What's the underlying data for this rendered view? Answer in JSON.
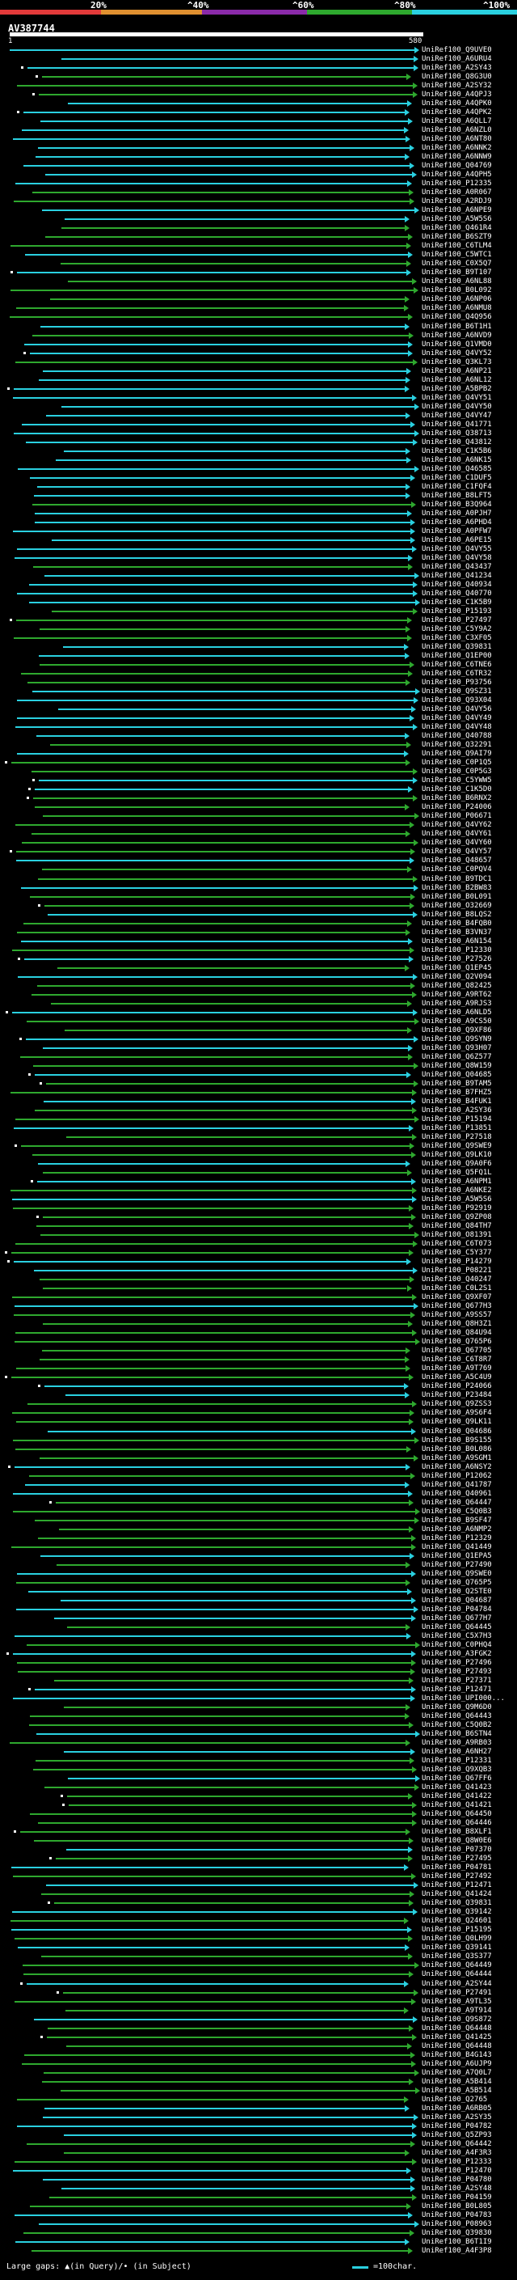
{
  "header": {
    "ticks": [
      "20%",
      "^40%",
      "^60%",
      "^80%",
      "^100%"
    ],
    "colors": {
      "red": "#e23a3a",
      "orange": "#e09030",
      "purple": "#8a2aa8",
      "green": "#2ea82e",
      "cyan": "#2ad0e0"
    }
  },
  "query": {
    "title": "AV387744",
    "start_label": "1",
    "end_label": "580"
  },
  "hits": [
    {
      "label": "UniRef100_Q9UVE0",
      "color": "cyan"
    },
    {
      "label": "UniRef100_A6URU4",
      "color": "cyan"
    },
    {
      "label": "UniRef100_A2SY43",
      "color": "cyan"
    },
    {
      "label": "UniRef100_Q8G3U0",
      "color": "green"
    },
    {
      "label": "UniRef100_A2SY32",
      "color": "green"
    },
    {
      "label": "UniRef100_A4QPJ3",
      "color": "green"
    },
    {
      "label": "UniRef100_A4QPK0",
      "color": "cyan"
    },
    {
      "label": "UniRef100_A4QPK2",
      "color": "cyan"
    },
    {
      "label": "UniRef100_A6QLL7",
      "color": "cyan"
    },
    {
      "label": "UniRef100_A6NZL0",
      "color": "cyan"
    },
    {
      "label": "UniRef100_A6NT80",
      "color": "cyan"
    },
    {
      "label": "UniRef100_A6NNK2",
      "color": "cyan"
    },
    {
      "label": "UniRef100_A6NNW9",
      "color": "cyan"
    },
    {
      "label": "UniRef100_Q04769",
      "color": "cyan"
    },
    {
      "label": "UniRef100_A4QPH5",
      "color": "cyan"
    },
    {
      "label": "UniRef100_P12335",
      "color": "cyan"
    },
    {
      "label": "UniRef100_A0R067",
      "color": "green"
    },
    {
      "label": "UniRef100_A2RDJ9",
      "color": "green"
    },
    {
      "label": "UniRef100_A6NPE9",
      "color": "cyan"
    },
    {
      "label": "UniRef100_A5W5S6",
      "color": "cyan"
    },
    {
      "label": "UniRef100_Q461R4",
      "color": "green"
    },
    {
      "label": "UniRef100_B6SZT9",
      "color": "green"
    },
    {
      "label": "UniRef100_C6TLM4",
      "color": "green"
    },
    {
      "label": "UniRef100_C5WTC1",
      "color": "cyan"
    },
    {
      "label": "UniRef100_C0X5Q7",
      "color": "green"
    },
    {
      "label": "UniRef100_B9T107",
      "color": "cyan"
    },
    {
      "label": "UniRef100_A6NL88",
      "color": "green"
    },
    {
      "label": "UniRef100_B0L092",
      "color": "green"
    },
    {
      "label": "UniRef100_A6NP06",
      "color": "green"
    },
    {
      "label": "UniRef100_A6NMU8",
      "color": "green"
    },
    {
      "label": "UniRef100_Q4Q956",
      "color": "green"
    },
    {
      "label": "UniRef100_B6T1H1",
      "color": "cyan"
    },
    {
      "label": "UniRef100_A6NVD9",
      "color": "green"
    },
    {
      "label": "UniRef100_Q1VMD0",
      "color": "cyan"
    },
    {
      "label": "UniRef100_Q4VY52",
      "color": "cyan"
    },
    {
      "label": "UniRef100_Q3KL73",
      "color": "green"
    },
    {
      "label": "UniRef100_A6NP21",
      "color": "cyan"
    },
    {
      "label": "UniRef100_A6NL12",
      "color": "cyan"
    },
    {
      "label": "UniRef100_A5BPB2",
      "color": "cyan"
    },
    {
      "label": "UniRef100_Q4VY51",
      "color": "cyan"
    },
    {
      "label": "UniRef100_Q4VY50",
      "color": "cyan"
    },
    {
      "label": "UniRef100_Q4VY47",
      "color": "cyan"
    },
    {
      "label": "UniRef100_Q41771",
      "color": "cyan"
    },
    {
      "label": "UniRef100_Q38713",
      "color": "cyan"
    },
    {
      "label": "UniRef100_Q43812",
      "color": "cyan"
    },
    {
      "label": "UniRef100_C1K5B6",
      "color": "cyan"
    },
    {
      "label": "UniRef100_A6NK15",
      "color": "cyan"
    },
    {
      "label": "UniRef100_Q46585",
      "color": "cyan"
    },
    {
      "label": "UniRef100_C1DUF5",
      "color": "cyan"
    },
    {
      "label": "UniRef100_C1FQF4",
      "color": "cyan"
    },
    {
      "label": "UniRef100_B8LFT5",
      "color": "cyan"
    },
    {
      "label": "UniRef100_B3Q964",
      "color": "green"
    },
    {
      "label": "UniRef100_A0PJH7",
      "color": "cyan"
    },
    {
      "label": "UniRef100_A6PHD4",
      "color": "cyan"
    },
    {
      "label": "UniRef100_A0PFW7",
      "color": "cyan"
    },
    {
      "label": "UniRef100_A6PE15",
      "color": "cyan"
    },
    {
      "label": "UniRef100_Q4VY55",
      "color": "cyan"
    },
    {
      "label": "UniRef100_Q4VY58",
      "color": "cyan"
    },
    {
      "label": "UniRef100_Q43437",
      "color": "green"
    },
    {
      "label": "UniRef100_Q41234",
      "color": "cyan"
    },
    {
      "label": "UniRef100_Q40934",
      "color": "cyan"
    },
    {
      "label": "UniRef100_Q40770",
      "color": "cyan"
    },
    {
      "label": "UniRef100_C1K5B9",
      "color": "cyan"
    },
    {
      "label": "UniRef100_P15193",
      "color": "green"
    },
    {
      "label": "UniRef100_P27497",
      "color": "green"
    },
    {
      "label": "UniRef100_C5Y9A2",
      "color": "green"
    },
    {
      "label": "UniRef100_C3XF05",
      "color": "green"
    },
    {
      "label": "UniRef100_Q39831",
      "color": "cyan"
    },
    {
      "label": "UniRef100_Q1EP00",
      "color": "cyan"
    },
    {
      "label": "UniRef100_C6TNE6",
      "color": "green"
    },
    {
      "label": "UniRef100_C6TR32",
      "color": "green"
    },
    {
      "label": "UniRef100_P93756",
      "color": "green"
    },
    {
      "label": "UniRef100_Q9SZ31",
      "color": "cyan"
    },
    {
      "label": "UniRef100_Q93X04",
      "color": "cyan"
    },
    {
      "label": "UniRef100_Q4VY56",
      "color": "cyan"
    },
    {
      "label": "UniRef100_Q4VY49",
      "color": "cyan"
    },
    {
      "label": "UniRef100_Q4VY48",
      "color": "cyan"
    },
    {
      "label": "UniRef100_Q40788",
      "color": "cyan"
    },
    {
      "label": "UniRef100_Q32291",
      "color": "green"
    },
    {
      "label": "UniRef100_Q9AI79",
      "color": "cyan"
    },
    {
      "label": "UniRef100_C0P1Q5",
      "color": "green"
    },
    {
      "label": "UniRef100_C0P5G3",
      "color": "green"
    },
    {
      "label": "UniRef100_C5YWW5",
      "color": "cyan"
    },
    {
      "label": "UniRef100_C1K5D0",
      "color": "cyan"
    },
    {
      "label": "UniRef100_B6RNX2",
      "color": "green"
    },
    {
      "label": "UniRef100_P24006",
      "color": "green"
    },
    {
      "label": "UniRef100_P06671",
      "color": "green"
    },
    {
      "label": "UniRef100_Q4VY62",
      "color": "green"
    },
    {
      "label": "UniRef100_Q4VY61",
      "color": "green"
    },
    {
      "label": "UniRef100_Q4VY60",
      "color": "green"
    },
    {
      "label": "UniRef100_Q4VY57",
      "color": "green"
    },
    {
      "label": "UniRef100_Q48657",
      "color": "cyan"
    },
    {
      "label": "UniRef100_C0PQV4",
      "color": "green"
    },
    {
      "label": "UniRef100_B9TDC1",
      "color": "green"
    },
    {
      "label": "UniRef100_B2BW83",
      "color": "cyan"
    },
    {
      "label": "UniRef100_B0L091",
      "color": "green"
    },
    {
      "label": "UniRef100_O32669",
      "color": "green"
    },
    {
      "label": "UniRef100_B8LQS2",
      "color": "cyan"
    },
    {
      "label": "UniRef100_B4FQB0",
      "color": "green"
    },
    {
      "label": "UniRef100_B3VN37",
      "color": "green"
    },
    {
      "label": "UniRef100_A6N154",
      "color": "cyan"
    },
    {
      "label": "UniRef100_P12330",
      "color": "green"
    },
    {
      "label": "UniRef100_P27526",
      "color": "cyan"
    },
    {
      "label": "UniRef100_Q1EP45",
      "color": "green"
    },
    {
      "label": "UniRef100_Q2V094",
      "color": "cyan"
    },
    {
      "label": "UniRef100_Q82425",
      "color": "green"
    },
    {
      "label": "UniRef100_A9RT62",
      "color": "green"
    },
    {
      "label": "UniRef100_A9RJS3",
      "color": "green"
    },
    {
      "label": "UniRef100_A6NLD5",
      "color": "cyan"
    },
    {
      "label": "UniRef100_A9CS50",
      "color": "green"
    },
    {
      "label": "UniRef100_Q9XF86",
      "color": "green"
    },
    {
      "label": "UniRef100_Q9SYN9",
      "color": "cyan"
    },
    {
      "label": "UniRef100_Q93H07",
      "color": "cyan"
    },
    {
      "label": "UniRef100_Q6Z577",
      "color": "green"
    },
    {
      "label": "UniRef100_Q8W159",
      "color": "green"
    },
    {
      "label": "UniRef100_Q04685",
      "color": "cyan"
    },
    {
      "label": "UniRef100_B9TAM5",
      "color": "green"
    },
    {
      "label": "UniRef100_B7FHZ5",
      "color": "green"
    },
    {
      "label": "UniRef100_B4FUK1",
      "color": "cyan"
    },
    {
      "label": "UniRef100_A2SY36",
      "color": "green"
    },
    {
      "label": "UniRef100_P15194",
      "color": "green"
    },
    {
      "label": "UniRef100_P13851",
      "color": "cyan"
    },
    {
      "label": "UniRef100_P27518",
      "color": "green"
    },
    {
      "label": "UniRef100_Q9SWE9",
      "color": "green"
    },
    {
      "label": "UniRef100_Q9LK10",
      "color": "green"
    },
    {
      "label": "UniRef100_Q9A0F6",
      "color": "cyan"
    },
    {
      "label": "UniRef100_Q5FQ1L",
      "color": "green"
    },
    {
      "label": "UniRef100_A6NPM1",
      "color": "cyan"
    },
    {
      "label": "UniRef100_A6NKE2",
      "color": "green"
    },
    {
      "label": "UniRef100_A5W5S6",
      "color": "cyan"
    },
    {
      "label": "UniRef100_P92919",
      "color": "green"
    },
    {
      "label": "UniRef100_Q9ZP08",
      "color": "green"
    },
    {
      "label": "UniRef100_Q84TH7",
      "color": "green"
    },
    {
      "label": "UniRef100_O81391",
      "color": "green"
    },
    {
      "label": "UniRef100_C6T073",
      "color": "green"
    },
    {
      "label": "UniRef100_C5Y377",
      "color": "green"
    },
    {
      "label": "UniRef100_P14279",
      "color": "cyan"
    },
    {
      "label": "UniRef100_P08221",
      "color": "cyan"
    },
    {
      "label": "UniRef100_Q40247",
      "color": "green"
    },
    {
      "label": "UniRef100_C0L2S1",
      "color": "green"
    },
    {
      "label": "UniRef100_Q9XF07",
      "color": "green"
    },
    {
      "label": "UniRef100_Q677H3",
      "color": "cyan"
    },
    {
      "label": "UniRef100_A9SS57",
      "color": "green"
    },
    {
      "label": "UniRef100_Q8H3Z1",
      "color": "green"
    },
    {
      "label": "UniRef100_Q84U94",
      "color": "green"
    },
    {
      "label": "UniRef100_Q765P6",
      "color": "green"
    },
    {
      "label": "UniRef100_Q67705",
      "color": "green"
    },
    {
      "label": "UniRef100_C6T8R7",
      "color": "green"
    },
    {
      "label": "UniRef100_A9T769",
      "color": "green"
    },
    {
      "label": "UniRef100_A5C4U9",
      "color": "green"
    },
    {
      "label": "UniRef100_P24066",
      "color": "cyan"
    },
    {
      "label": "UniRef100_P23484",
      "color": "cyan"
    },
    {
      "label": "UniRef100_Q9ZSS3",
      "color": "green"
    },
    {
      "label": "UniRef100_A9S6F4",
      "color": "green"
    },
    {
      "label": "UniRef100_Q9LK11",
      "color": "green"
    },
    {
      "label": "UniRef100_Q04686",
      "color": "cyan"
    },
    {
      "label": "UniRef100_B9S155",
      "color": "green"
    },
    {
      "label": "UniRef100_B0L086",
      "color": "green"
    },
    {
      "label": "UniRef100_A9SGM1",
      "color": "green"
    },
    {
      "label": "UniRef100_A6NSY2",
      "color": "cyan"
    },
    {
      "label": "UniRef100_P12062",
      "color": "green"
    },
    {
      "label": "UniRef100_Q41787",
      "color": "cyan"
    },
    {
      "label": "UniRef100_Q40961",
      "color": "cyan"
    },
    {
      "label": "UniRef100_Q64447",
      "color": "green"
    },
    {
      "label": "UniRef100_C5Q0B3",
      "color": "green"
    },
    {
      "label": "UniRef100_B9SF47",
      "color": "green"
    },
    {
      "label": "UniRef100_A6NMP2",
      "color": "green"
    },
    {
      "label": "UniRef100_P12329",
      "color": "green"
    },
    {
      "label": "UniRef100_Q41449",
      "color": "green"
    },
    {
      "label": "UniRef100_Q1EPA5",
      "color": "cyan"
    },
    {
      "label": "UniRef100_P27490",
      "color": "green"
    },
    {
      "label": "UniRef100_Q9SWE0",
      "color": "cyan"
    },
    {
      "label": "UniRef100_Q765P5",
      "color": "green"
    },
    {
      "label": "UniRef100_Q2STE0",
      "color": "cyan"
    },
    {
      "label": "UniRef100_Q04687",
      "color": "cyan"
    },
    {
      "label": "UniRef100_P04784",
      "color": "cyan"
    },
    {
      "label": "UniRef100_Q677H7",
      "color": "cyan"
    },
    {
      "label": "UniRef100_Q64445",
      "color": "green"
    },
    {
      "label": "UniRef100_C5X7H3",
      "color": "cyan"
    },
    {
      "label": "UniRef100_C0PHQ4",
      "color": "green"
    },
    {
      "label": "UniRef100_A3FGK2",
      "color": "cyan"
    },
    {
      "label": "UniRef100_P27496",
      "color": "green"
    },
    {
      "label": "UniRef100_P27493",
      "color": "green"
    },
    {
      "label": "UniRef100_P27371",
      "color": "green"
    },
    {
      "label": "UniRef100_P12471",
      "color": "cyan"
    },
    {
      "label": "UniRef100_UPI000...",
      "color": "cyan"
    },
    {
      "label": "UniRef100_Q9M6D0",
      "color": "green"
    },
    {
      "label": "UniRef100_Q64443",
      "color": "green"
    },
    {
      "label": "UniRef100_C5Q0B2",
      "color": "green"
    },
    {
      "label": "UniRef100_B6STN4",
      "color": "cyan"
    },
    {
      "label": "UniRef100_A9RB03",
      "color": "green"
    },
    {
      "label": "UniRef100_A6NH27",
      "color": "cyan"
    },
    {
      "label": "UniRef100_P12331",
      "color": "green"
    },
    {
      "label": "UniRef100_Q9XQB3",
      "color": "green"
    },
    {
      "label": "UniRef100_Q67FF6",
      "color": "cyan"
    },
    {
      "label": "UniRef100_Q41423",
      "color": "green"
    },
    {
      "label": "UniRef100_Q41422",
      "color": "green"
    },
    {
      "label": "UniRef100_Q41421",
      "color": "green"
    },
    {
      "label": "UniRef100_Q64450",
      "color": "green"
    },
    {
      "label": "UniRef100_Q64446",
      "color": "green"
    },
    {
      "label": "UniRef100_B8XLF1",
      "color": "green"
    },
    {
      "label": "UniRef100_Q8W0E6",
      "color": "green"
    },
    {
      "label": "UniRef100_P07370",
      "color": "cyan"
    },
    {
      "label": "UniRef100_P27495",
      "color": "green"
    },
    {
      "label": "UniRef100_P04781",
      "color": "cyan"
    },
    {
      "label": "UniRef100_P27492",
      "color": "green"
    },
    {
      "label": "UniRef100_P12471",
      "color": "cyan"
    },
    {
      "label": "UniRef100_Q41424",
      "color": "green"
    },
    {
      "label": "UniRef100_Q39831",
      "color": "green"
    },
    {
      "label": "UniRef100_Q39142",
      "color": "cyan"
    },
    {
      "label": "UniRef100_Q24601",
      "color": "green"
    },
    {
      "label": "UniRef100_P15195",
      "color": "cyan"
    },
    {
      "label": "UniRef100_Q0LH99",
      "color": "green"
    },
    {
      "label": "UniRef100_Q39141",
      "color": "cyan"
    },
    {
      "label": "UniRef100_Q3S377",
      "color": "green"
    },
    {
      "label": "UniRef100_Q64449",
      "color": "green"
    },
    {
      "label": "UniRef100_Q64444",
      "color": "green"
    },
    {
      "label": "UniRef100_A2SY44",
      "color": "cyan"
    },
    {
      "label": "UniRef100_P27491",
      "color": "green"
    },
    {
      "label": "UniRef100_A9TL35",
      "color": "green"
    },
    {
      "label": "UniRef100_A9T914",
      "color": "green"
    },
    {
      "label": "UniRef100_Q9S872",
      "color": "cyan"
    },
    {
      "label": "UniRef100_Q64448",
      "color": "green"
    },
    {
      "label": "UniRef100_Q41425",
      "color": "green"
    },
    {
      "label": "UniRef100_Q64448",
      "color": "green"
    },
    {
      "label": "UniRef100_B4G143",
      "color": "green"
    },
    {
      "label": "UniRef100_A6UJP9",
      "color": "green"
    },
    {
      "label": "UniRef100_A7Q0L7",
      "color": "green"
    },
    {
      "label": "UniRef100_A5B414",
      "color": "green"
    },
    {
      "label": "UniRef100_A5B514",
      "color": "green"
    },
    {
      "label": "UniRef100_Q2765",
      "color": "green"
    },
    {
      "label": "UniRef100_A6RB05",
      "color": "cyan"
    },
    {
      "label": "UniRef100_A2SY35",
      "color": "cyan"
    },
    {
      "label": "UniRef100_P04782",
      "color": "cyan"
    },
    {
      "label": "UniRef100_Q5ZP93",
      "color": "cyan"
    },
    {
      "label": "UniRef100_Q64442",
      "color": "green"
    },
    {
      "label": "UniRef100_A4F3R3",
      "color": "green"
    },
    {
      "label": "UniRef100_P12333",
      "color": "green"
    },
    {
      "label": "UniRef100_P12470",
      "color": "cyan"
    },
    {
      "label": "UniRef100_P04780",
      "color": "cyan"
    },
    {
      "label": "UniRef100_A2SY48",
      "color": "cyan"
    },
    {
      "label": "UniRef100_P04159",
      "color": "green"
    },
    {
      "label": "UniRef100_B0L805",
      "color": "green"
    },
    {
      "label": "UniRef100_P04783",
      "color": "cyan"
    },
    {
      "label": "UniRef100_P08963",
      "color": "cyan"
    },
    {
      "label": "UniRef100_Q39830",
      "color": "green"
    },
    {
      "label": "UniRef100_B6T1I9",
      "color": "cyan"
    },
    {
      "label": "UniRef100_A4F3P8",
      "color": "green"
    }
  ],
  "footer": {
    "text": "Large gaps: ▲(in Query)/• (in Subject)",
    "scale_text": "=100char."
  }
}
